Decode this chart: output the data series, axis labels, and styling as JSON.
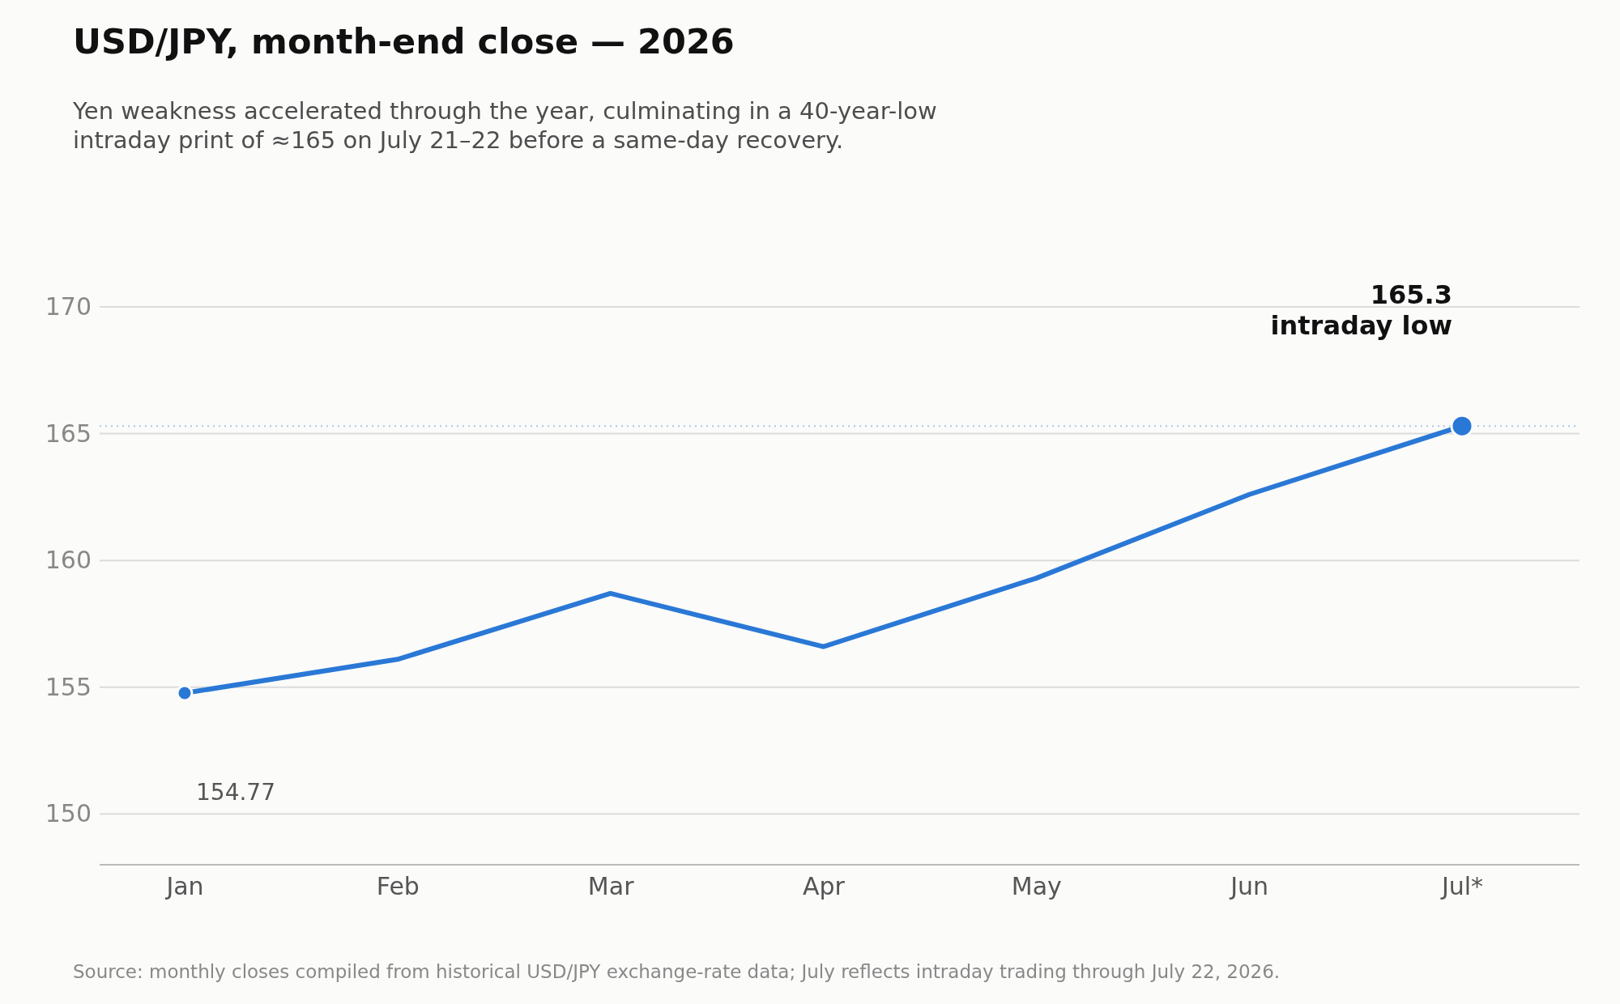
{
  "chart_data": {
    "type": "line",
    "title": "USD/JPY, month-end close — 2026",
    "subtitle": "Yen weakness accelerated through the year, culminating in a 40-year-low\nintraday print of ≈165 on July 21–22 before a same-day recovery.",
    "categories": [
      "Jan",
      "Feb",
      "Mar",
      "Apr",
      "May",
      "Jun",
      "Jul*"
    ],
    "series": [
      {
        "color": "#2a78d6",
        "values": [
          154.77,
          156.1,
          158.7,
          156.6,
          159.3,
          162.6,
          165.3
        ]
      },
      {
        "type": "scatter",
        "color": "#2a78d6",
        "x": [
          "Jan",
          "Jul*"
        ],
        "values": [
          154.77,
          165.3
        ]
      }
    ],
    "ylim": [
      148,
      170
    ],
    "yticks": [
      150,
      155,
      160,
      165,
      170
    ],
    "grid": "y",
    "line_style": "solid",
    "ref_lines": [
      {
        "axis": "y",
        "value": 165.3,
        "color": "#a9c8ea",
        "line_style": "dotted"
      }
    ],
    "annotations": [
      "154.77",
      "165.3\nintraday low",
      "Source: monthly closes compiled from historical USD/JPY exchange-rate data; July reflects intraday trading through July 22, 2026."
    ]
  }
}
